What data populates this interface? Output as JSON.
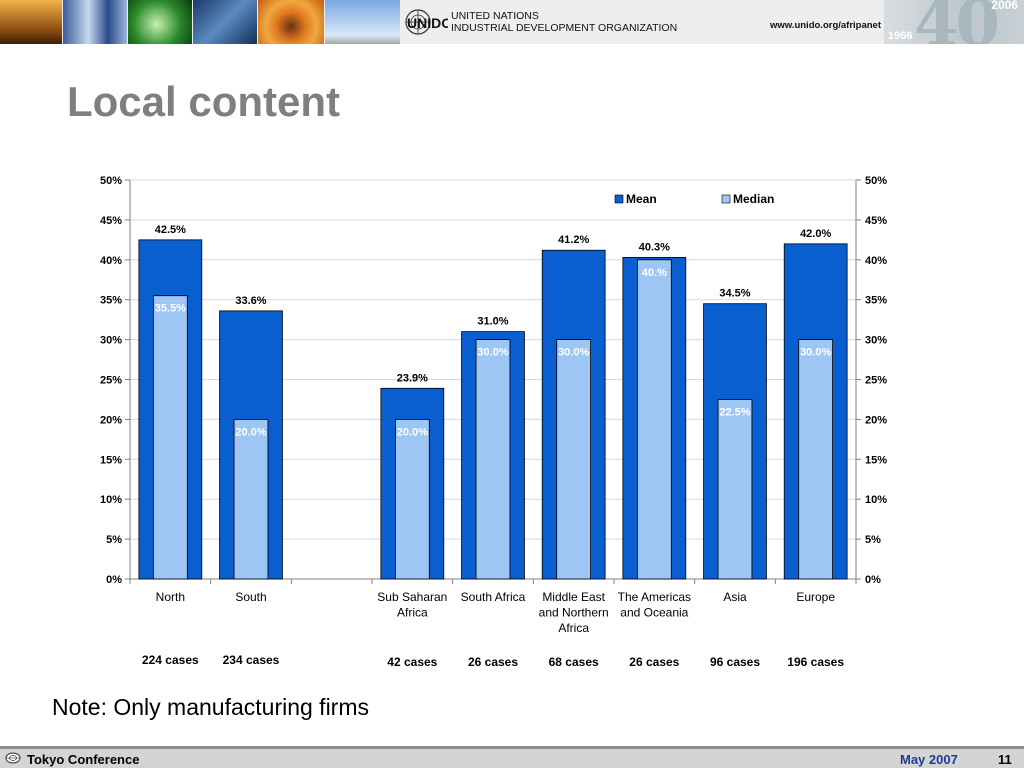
{
  "header": {
    "org_line1": "UNITED NATIONS",
    "org_line2": "INDUSTRIAL DEVELOPMENT ORGANIZATION",
    "logo_text": "UNIDO",
    "url": "www.unido.org/afripanet",
    "anniversary": {
      "big": "40",
      "start_year": "1966",
      "end_year": "2006"
    }
  },
  "slide": {
    "title": "Local content",
    "note": "Note: Only manufacturing firms"
  },
  "footer": {
    "left": "Tokyo Conference",
    "date": "May 2007",
    "page": "11"
  },
  "colors": {
    "mean": "#0a5fd0",
    "median": "#9dc6f5",
    "title": "#7f7f7f",
    "footer_date": "#1f3a9e"
  },
  "chart_data": {
    "type": "bar",
    "title": "",
    "xlabel": "",
    "ylabel": "",
    "ylim": [
      0,
      50
    ],
    "yticks": [
      "0%",
      "5%",
      "10%",
      "15%",
      "20%",
      "25%",
      "30%",
      "35%",
      "40%",
      "45%",
      "50%"
    ],
    "y_axis_both_sides": true,
    "grid": true,
    "legend": "top-right",
    "categories": [
      [
        "North"
      ],
      [
        "South"
      ],
      [
        ""
      ],
      [
        "Sub Saharan",
        "Africa"
      ],
      [
        "South Africa"
      ],
      [
        "Middle East",
        "and Northern",
        "Africa"
      ],
      [
        "The Americas",
        "and Oceania"
      ],
      [
        "Asia"
      ],
      [
        "Europe"
      ]
    ],
    "cases": [
      "224 cases",
      "234 cases",
      "",
      "42 cases",
      "26 cases",
      "68 cases",
      "26 cases",
      "96 cases",
      "196 cases"
    ],
    "series": [
      {
        "name": "Mean",
        "values": [
          42.5,
          33.6,
          null,
          23.9,
          31.0,
          41.2,
          40.3,
          34.5,
          42.0
        ],
        "labels": [
          "42.5%",
          "33.6%",
          "",
          "23.9%",
          "31.0%",
          "41.2%",
          "40.3%",
          "34.5%",
          "42.0%"
        ]
      },
      {
        "name": "Median",
        "values": [
          35.5,
          20.0,
          null,
          20.0,
          30.0,
          30.0,
          40.0,
          22.5,
          30.0
        ],
        "labels": [
          "35.5%",
          "20.0%",
          "",
          "20.0%",
          "30.0%",
          "30.0%",
          "40.%",
          "22.5%",
          "30.0%"
        ]
      }
    ]
  }
}
